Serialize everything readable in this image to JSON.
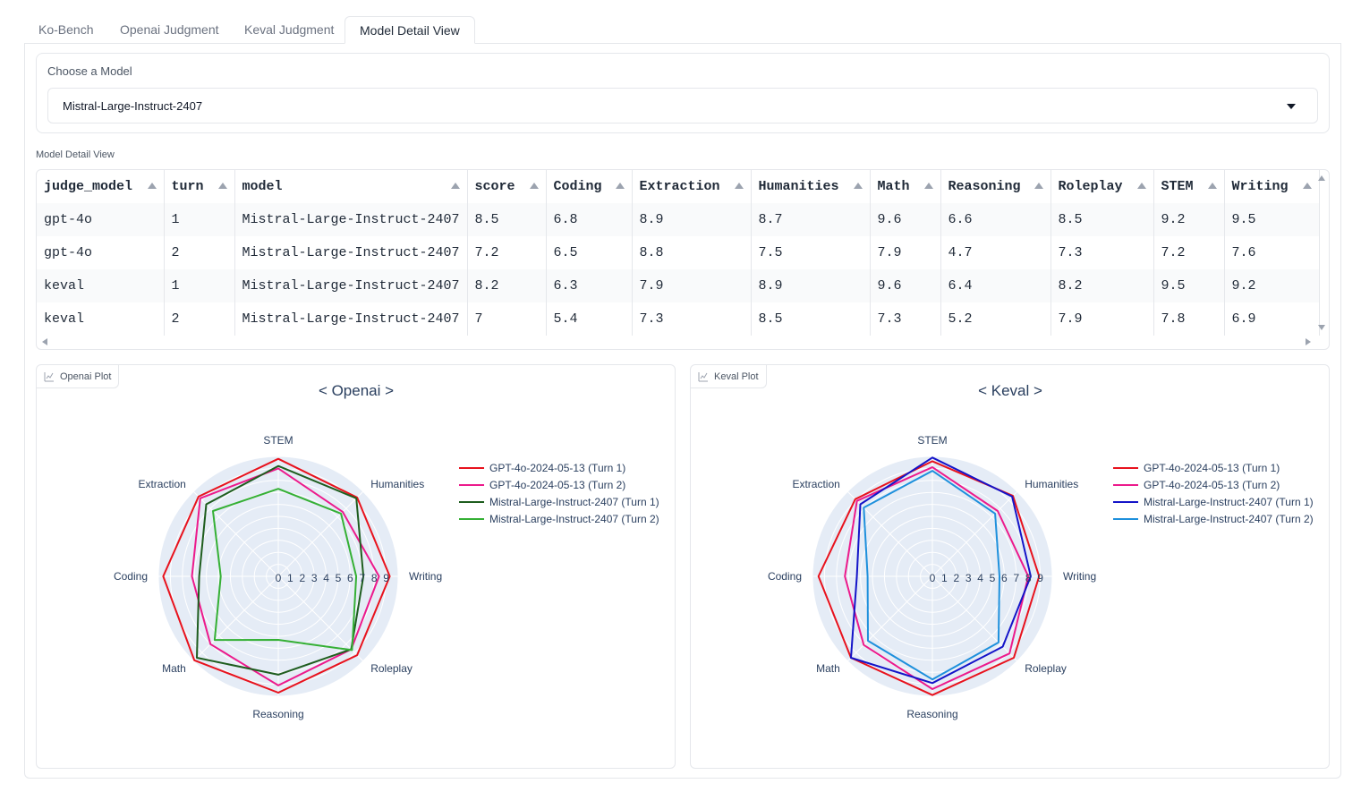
{
  "tabs": [
    {
      "label": "Ko-Bench",
      "active": false
    },
    {
      "label": "Openai Judgment",
      "active": false
    },
    {
      "label": "Keval Judgment",
      "active": false
    },
    {
      "label": "Model Detail View",
      "active": true
    }
  ],
  "model_select": {
    "label": "Choose a Model",
    "value": "Mistral-Large-Instruct-2407"
  },
  "detail_table": {
    "label": "Model Detail View",
    "columns": [
      "judge_model",
      "turn",
      "model",
      "score",
      "Coding",
      "Extraction",
      "Humanities",
      "Math",
      "Reasoning",
      "Roleplay",
      "STEM",
      "Writing"
    ],
    "rows": [
      [
        "gpt-4o",
        "1",
        "Mistral-Large-Instruct-2407",
        "8.5",
        "6.8",
        "8.9",
        "8.7",
        "9.6",
        "6.6",
        "8.5",
        "9.2",
        "9.5"
      ],
      [
        "gpt-4o",
        "2",
        "Mistral-Large-Instruct-2407",
        "7.2",
        "6.5",
        "8.8",
        "7.5",
        "7.9",
        "4.7",
        "7.3",
        "7.2",
        "7.6"
      ],
      [
        "keval",
        "1",
        "Mistral-Large-Instruct-2407",
        "8.2",
        "6.3",
        "7.9",
        "8.9",
        "9.6",
        "6.4",
        "8.2",
        "9.5",
        "9.2"
      ],
      [
        "keval",
        "2",
        "Mistral-Large-Instruct-2407",
        "7",
        "5.4",
        "7.3",
        "8.5",
        "7.3",
        "5.2",
        "7.9",
        "7.8",
        "6.9"
      ]
    ]
  },
  "plots": [
    {
      "badge": "Openai Plot",
      "icon": "chart-icon"
    },
    {
      "badge": "Keval Plot",
      "icon": "chart-icon"
    }
  ],
  "chart_data": [
    {
      "type": "radar",
      "title": "< Openai >",
      "categories": [
        "STEM",
        "Humanities",
        "Writing",
        "Roleplay",
        "Reasoning",
        "Math",
        "Coding",
        "Extraction"
      ],
      "radial_ticks": [
        "0",
        "1",
        "2",
        "3",
        "4",
        "5",
        "6",
        "7",
        "8",
        "9"
      ],
      "rrange": [
        0,
        10
      ],
      "legend_position": "right",
      "series": [
        {
          "name": "GPT-4o-2024-05-13 (Turn 1)",
          "color": "#e8121d",
          "values": [
            9.8,
            9.3,
            9.3,
            9.3,
            9.7,
            9.9,
            9.6,
            9.4
          ]
        },
        {
          "name": "GPT-4o-2024-05-13 (Turn 2)",
          "color": "#ec1a8c",
          "values": [
            9.0,
            7.6,
            8.4,
            8.6,
            9.1,
            8.0,
            7.2,
            9.2
          ]
        },
        {
          "name": "Mistral-Large-Instruct-2407 (Turn 1)",
          "color": "#1e5d1e",
          "values": [
            9.2,
            9.2,
            7.1,
            8.6,
            8.2,
            9.6,
            6.6,
            8.5
          ]
        },
        {
          "name": "Mistral-Large-Instruct-2407 (Turn 2)",
          "color": "#35b035",
          "values": [
            7.3,
            7.4,
            6.5,
            8.7,
            5.3,
            7.5,
            4.8,
            7.7
          ]
        }
      ]
    },
    {
      "type": "radar",
      "title": "< Keval >",
      "categories": [
        "STEM",
        "Humanities",
        "Writing",
        "Roleplay",
        "Reasoning",
        "Math",
        "Coding",
        "Extraction"
      ],
      "radial_ticks": [
        "0",
        "1",
        "2",
        "3",
        "4",
        "5",
        "6",
        "7",
        "8",
        "9"
      ],
      "rrange": [
        0,
        10
      ],
      "legend_position": "right",
      "series": [
        {
          "name": "GPT-4o-2024-05-13 (Turn 1)",
          "color": "#e8121d",
          "values": [
            9.6,
            9.5,
            8.9,
            9.6,
            9.9,
            9.6,
            9.5,
            9.1
          ]
        },
        {
          "name": "GPT-4o-2024-05-13 (Turn 2)",
          "color": "#ec1a8c",
          "values": [
            9.1,
            7.7,
            8.0,
            9.1,
            9.4,
            8.1,
            7.3,
            8.9
          ]
        },
        {
          "name": "Mistral-Large-Instruct-2407 (Turn 1)",
          "color": "#1414c8",
          "values": [
            9.9,
            9.4,
            8.2,
            8.3,
            8.9,
            9.6,
            6.3,
            8.5
          ]
        },
        {
          "name": "Mistral-Large-Instruct-2407 (Turn 2)",
          "color": "#1e90dc",
          "values": [
            8.8,
            7.4,
            5.6,
            7.8,
            8.6,
            7.6,
            5.4,
            8.1
          ]
        }
      ]
    }
  ]
}
